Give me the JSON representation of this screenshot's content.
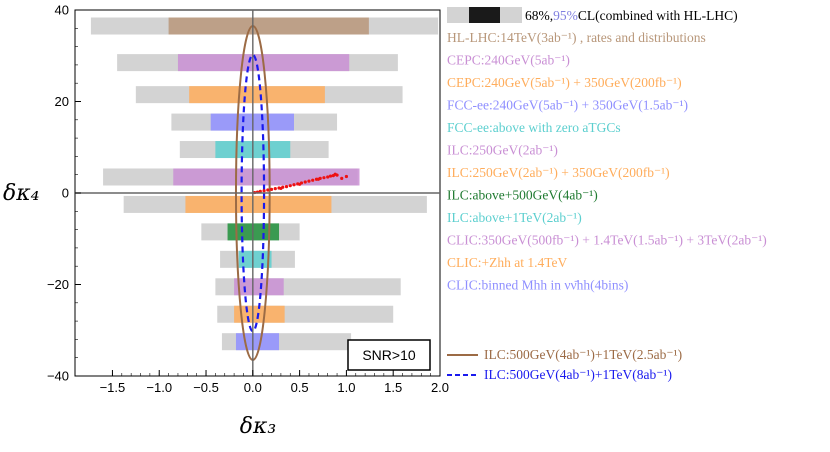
{
  "chart_data": {
    "type": "bar",
    "orientation": "horizontal-interval",
    "xlabel": "δκ₃",
    "ylabel": "δκ₄",
    "xlim": [
      -1.9,
      2.0
    ],
    "ylim": [
      -40,
      40
    ],
    "x_ticks": [
      -1.5,
      -1.0,
      -0.5,
      0.0,
      0.5,
      1.0,
      1.5,
      2.0
    ],
    "x_tick_labels": [
      "−1.5",
      "−1.0",
      "−0.5",
      "0.0",
      "0.5",
      "1.0",
      "1.5",
      "2.0"
    ],
    "y_ticks": [
      -40,
      -20,
      0,
      20,
      40
    ],
    "y_tick_labels": [
      "−40",
      "−20",
      "0",
      "20",
      "40"
    ],
    "annotation": "SNR>10",
    "legend_key": {
      "label_68": "68%,",
      "label_95": "95%",
      "label_tail": "CL(combined with HL-LHC)",
      "color_68": "#1a1a1a",
      "color_95": "#d3d3d3"
    },
    "series": [
      {
        "name": "HL-LHC:14TeV(3ab⁻¹) , rates and distributions",
        "color": "#b8977a",
        "y": 36.5,
        "cl95": [
          -1.73,
          1.98
        ],
        "cl68": [
          -0.9,
          1.24
        ]
      },
      {
        "name": "CEPC:240GeV(5ab⁻¹)",
        "color": "#c98fd4",
        "y": 28.5,
        "cl95": [
          -1.45,
          1.55
        ],
        "cl68": [
          -0.8,
          1.03
        ]
      },
      {
        "name": "CEPC:240GeV(5ab⁻¹) + 350GeV(200fb⁻¹)",
        "color": "#ffad5c",
        "y": 21.5,
        "cl95": [
          -1.25,
          1.6
        ],
        "cl68": [
          -0.68,
          0.77
        ]
      },
      {
        "name": "FCC-ee:240GeV(5ab⁻¹) + 350GeV(1.5ab⁻¹)",
        "color": "#8f8fff",
        "y": 15.5,
        "cl95": [
          -0.87,
          0.9
        ],
        "cl68": [
          -0.45,
          0.44
        ]
      },
      {
        "name": "FCC-ee:above with zero aTGCs",
        "color": "#5ccfcf",
        "y": 9.5,
        "cl95": [
          -0.78,
          0.81
        ],
        "cl68": [
          -0.4,
          0.4
        ]
      },
      {
        "name": "ILC:250GeV(2ab⁻¹)",
        "color": "#c98fd4",
        "y": 3.5,
        "cl95": [
          -1.6,
          1.12
        ],
        "cl68": [
          -0.85,
          1.14
        ]
      },
      {
        "name": "ILC:250GeV(2ab⁻¹) + 350GeV(200fb⁻¹)",
        "color": "#ffad5c",
        "y": -2.5,
        "cl95": [
          -1.38,
          1.86
        ],
        "cl68": [
          -0.72,
          0.84
        ]
      },
      {
        "name": "ILC:above+500GeV(4ab⁻¹)",
        "color": "#1f8f3a",
        "y": -8.5,
        "cl95": [
          -0.55,
          0.5
        ],
        "cl68": [
          -0.27,
          0.28
        ]
      },
      {
        "name": "ILC:above+1TeV(2ab⁻¹)",
        "color": "#5ccfcf",
        "y": -14.5,
        "cl95": [
          -0.35,
          0.45
        ],
        "cl68": [
          -0.15,
          0.2
        ]
      },
      {
        "name": "CLIC:350GeV(500fb⁻¹) + 1.4TeV(1.5ab⁻¹) + 3TeV(2ab⁻¹)",
        "color": "#c98fd4",
        "y": -20.5,
        "cl95": [
          -0.4,
          1.58
        ],
        "cl68": [
          -0.2,
          0.33
        ]
      },
      {
        "name": "CLIC:+Zhh at 1.4TeV",
        "color": "#ffad5c",
        "y": -26.5,
        "cl95": [
          -0.38,
          1.5
        ],
        "cl68": [
          -0.2,
          0.34
        ]
      },
      {
        "name": "CLIC:binned Mhh in νν̄hh(4bins)",
        "color": "#8f8fff",
        "y": -32.5,
        "cl95": [
          -0.33,
          1.05
        ],
        "cl68": [
          -0.18,
          0.28
        ]
      }
    ],
    "ellipses": [
      {
        "name": "ILC:500GeV(4ab⁻¹)+1TeV(2.5ab⁻¹)",
        "color": "#9c6b45",
        "style": "solid",
        "center": [
          0.0,
          0.0
        ],
        "rx": 0.18,
        "ry": 36.5
      },
      {
        "name": "ILC:500GeV(4ab⁻¹)+1TeV(8ab⁻¹)",
        "color": "#1a1aee",
        "style": "dashed",
        "center": [
          0.0,
          0.0
        ],
        "rx": 0.12,
        "ry": 30.2
      }
    ],
    "scatter": {
      "name": "SNR>10 points",
      "color": "#ee1111",
      "x": [
        0.02,
        0.05,
        0.08,
        0.12,
        0.16,
        0.2,
        0.24,
        0.28,
        0.32,
        0.36,
        0.4,
        0.44,
        0.48,
        0.52,
        0.56,
        0.6,
        0.64,
        0.68,
        0.72,
        0.76,
        0.8,
        0.83,
        0.86,
        0.9,
        0.95,
        1.0,
        0.3,
        0.5,
        0.7,
        0.88
      ],
      "y": [
        0.1,
        0.2,
        0.35,
        0.5,
        0.65,
        0.8,
        0.95,
        1.1,
        1.25,
        1.4,
        1.6,
        1.8,
        2.0,
        2.2,
        2.4,
        2.6,
        2.8,
        3.0,
        3.2,
        3.35,
        3.5,
        3.7,
        3.8,
        3.9,
        3.2,
        3.6,
        1.0,
        1.9,
        3.0,
        4.1
      ]
    }
  }
}
